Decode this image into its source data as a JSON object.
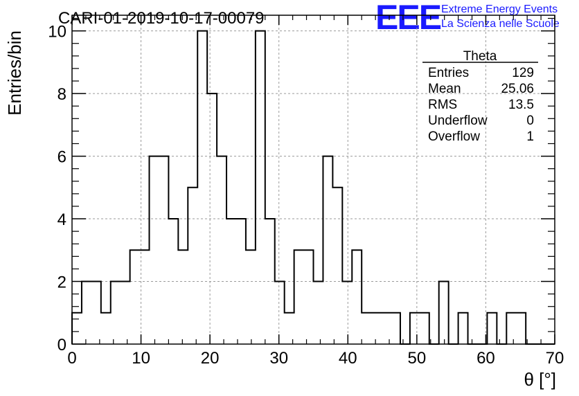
{
  "chart_data": {
    "type": "histogram",
    "title": "CARI-01-2019-10-17-00079",
    "xlabel": "θ [°]",
    "ylabel": "Entries/bin",
    "xlim": [
      0,
      70
    ],
    "ylim": [
      0,
      10.5
    ],
    "grid": true,
    "bin_width": 1.4,
    "bin_edges_start": 0,
    "counts": [
      1,
      2,
      2,
      1,
      2,
      2,
      3,
      3,
      6,
      6,
      4,
      3,
      5,
      10,
      8,
      6,
      4,
      4,
      3,
      10,
      4,
      2,
      1,
      3,
      3,
      2,
      6,
      5,
      2,
      3,
      1,
      1,
      1,
      1,
      0,
      1,
      1,
      0,
      2,
      0,
      1,
      0,
      0,
      1,
      0,
      1,
      1,
      0,
      0,
      0
    ],
    "x_ticks": [
      "0",
      "10",
      "20",
      "30",
      "40",
      "50",
      "60",
      "70"
    ],
    "y_ticks": [
      "0",
      "2",
      "4",
      "6",
      "8",
      "10"
    ],
    "stats": {
      "name": "Theta",
      "rows": [
        {
          "label": "Entries",
          "value": "129"
        },
        {
          "label": "Mean",
          "value": "25.06"
        },
        {
          "label": "RMS",
          "value": "13.5"
        },
        {
          "label": "Underflow",
          "value": "0"
        },
        {
          "label": "Overflow",
          "value": "1"
        }
      ]
    }
  },
  "logo": {
    "mark": "EEE",
    "line1": "Extreme Energy Events",
    "line2": "La Scienza nelle Scuole"
  },
  "colors": {
    "logo": "#1a1aff",
    "grid": "#9a9a9a",
    "line": "#000000"
  }
}
